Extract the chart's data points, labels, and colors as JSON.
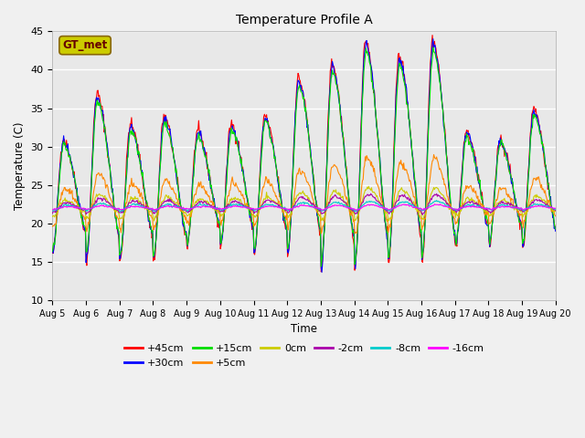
{
  "title": "Temperature Profile A",
  "xlabel": "Time",
  "ylabel": "Temperature (C)",
  "ylim": [
    10,
    45
  ],
  "yticks": [
    10,
    15,
    20,
    25,
    30,
    35,
    40,
    45
  ],
  "x_tick_labels": [
    "Aug 5",
    "Aug 6",
    "Aug 7",
    "Aug 8",
    "Aug 9",
    "Aug 10",
    "Aug 11",
    "Aug 12",
    "Aug 13",
    "Aug 14",
    "Aug 15",
    "Aug 16",
    "Aug 17",
    "Aug 18",
    "Aug 19",
    "Aug 20"
  ],
  "series_colors": {
    "+45cm": "#ff0000",
    "+30cm": "#0000ff",
    "+15cm": "#00dd00",
    "+5cm": "#ff8800",
    "0cm": "#cccc00",
    "-2cm": "#aa00aa",
    "-8cm": "#00cccc",
    "-16cm": "#ff00ff"
  },
  "legend_label": "GT_met",
  "legend_box_facecolor": "#cccc00",
  "legend_box_edgecolor": "#886600",
  "legend_text_color": "#660000",
  "plot_bg_color": "#e8e8e8",
  "fig_bg_color": "#f0f0f0",
  "grid_color": "#ffffff",
  "legend_row1": [
    "+45cm",
    "+30cm",
    "+15cm",
    "+5cm",
    "0cm",
    "-2cm"
  ],
  "legend_row2": [
    "-8cm",
    "-16cm"
  ],
  "n_days": 15,
  "n_per_day": 48,
  "base_temp": 22.0,
  "peak_amps_45": [
    9,
    15,
    11,
    12,
    10,
    11,
    12,
    17,
    19,
    22,
    20,
    22,
    10,
    9,
    13
  ],
  "trough_amps_45": [
    6,
    7,
    7,
    7,
    5,
    5,
    6,
    6,
    8,
    8,
    7,
    7,
    5,
    5,
    5
  ],
  "peak_phase": 0.33,
  "linewidth": 0.8
}
